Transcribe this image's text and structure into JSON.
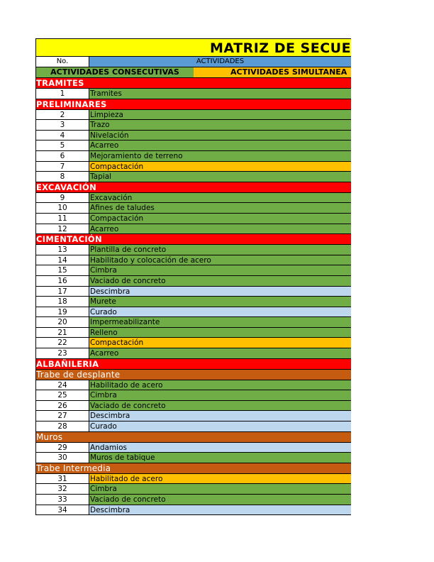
{
  "title": "MATRIZ DE SECUE",
  "header": {
    "no_label": "No.",
    "activities_label": "ACTIVIDADES"
  },
  "legend": {
    "consecutive_label": "ACTIVIDADES CONSECUTIVAS",
    "simultaneous_label": "ACTIVIDADES SIMULTANEA"
  },
  "colors": {
    "title": "#ffff00",
    "section": "#ff0000",
    "subsection": "#c55a11",
    "consecutive": "#70ad47",
    "simultaneous": "#ffc000",
    "other": "#bdd7ee",
    "header": "#5b9bd5"
  },
  "rows": [
    {
      "kind": "section",
      "label": "TRAMITES"
    },
    {
      "kind": "activity",
      "no": "1",
      "name": "Tramites",
      "color": "green"
    },
    {
      "kind": "section",
      "label": "PRELIMINARES"
    },
    {
      "kind": "activity",
      "no": "2",
      "name": "Limpieza",
      "color": "green"
    },
    {
      "kind": "activity",
      "no": "3",
      "name": "Trazo",
      "color": "green"
    },
    {
      "kind": "activity",
      "no": "4",
      "name": "Nivelación",
      "color": "green"
    },
    {
      "kind": "activity",
      "no": "5",
      "name": "Acarreo",
      "color": "green"
    },
    {
      "kind": "activity",
      "no": "6",
      "name": "Mejoramiento de terreno",
      "color": "green"
    },
    {
      "kind": "activity",
      "no": "7",
      "name": "Compactación",
      "color": "orange"
    },
    {
      "kind": "activity",
      "no": "8",
      "name": "Tapial",
      "color": "green"
    },
    {
      "kind": "section",
      "label": "EXCAVACIÓN"
    },
    {
      "kind": "activity",
      "no": "9",
      "name": "Excavación",
      "color": "green"
    },
    {
      "kind": "activity",
      "no": "10",
      "name": "Afines de taludes",
      "color": "green"
    },
    {
      "kind": "activity",
      "no": "11",
      "name": "Compactación",
      "color": "green"
    },
    {
      "kind": "activity",
      "no": "12",
      "name": "Acarreo",
      "color": "green"
    },
    {
      "kind": "section",
      "label": "CIMENTACIÓN"
    },
    {
      "kind": "activity",
      "no": "13",
      "name": "Plantilla de concreto",
      "color": "green"
    },
    {
      "kind": "activity",
      "no": "14",
      "name": "Habilitado y colocación de acero",
      "color": "green"
    },
    {
      "kind": "activity",
      "no": "15",
      "name": "Cimbra",
      "color": "green"
    },
    {
      "kind": "activity",
      "no": "16",
      "name": "Vaciado de concreto",
      "color": "green"
    },
    {
      "kind": "activity",
      "no": "17",
      "name": "Descimbra",
      "color": "blue"
    },
    {
      "kind": "activity",
      "no": "18",
      "name": "Murete",
      "color": "green"
    },
    {
      "kind": "activity",
      "no": "19",
      "name": "Curado",
      "color": "blue"
    },
    {
      "kind": "activity",
      "no": "20",
      "name": "Impermeabilizante",
      "color": "green"
    },
    {
      "kind": "activity",
      "no": "21",
      "name": "Relleno",
      "color": "green"
    },
    {
      "kind": "activity",
      "no": "22",
      "name": "Compactación",
      "color": "orange"
    },
    {
      "kind": "activity",
      "no": "23",
      "name": "Acarreo",
      "color": "green"
    },
    {
      "kind": "section",
      "label": "ALBAÑILERIA"
    },
    {
      "kind": "subsection",
      "label": "Trabe de desplante"
    },
    {
      "kind": "activity",
      "no": "24",
      "name": "Habilitado de acero",
      "color": "green"
    },
    {
      "kind": "activity",
      "no": "25",
      "name": "Cimbra",
      "color": "green"
    },
    {
      "kind": "activity",
      "no": "26",
      "name": "Vaciado de concreto",
      "color": "green"
    },
    {
      "kind": "activity",
      "no": "27",
      "name": "Descimbra",
      "color": "blue"
    },
    {
      "kind": "activity",
      "no": "28",
      "name": "Curado",
      "color": "blue"
    },
    {
      "kind": "subsection",
      "label": "Muros"
    },
    {
      "kind": "activity",
      "no": "29",
      "name": "Andamios",
      "color": "blue"
    },
    {
      "kind": "activity",
      "no": "30",
      "name": "Muros de tabique",
      "color": "green"
    },
    {
      "kind": "subsection",
      "label": "Trabe Intermedia"
    },
    {
      "kind": "activity",
      "no": "31",
      "name": "Habilitado de acero",
      "color": "orange"
    },
    {
      "kind": "activity",
      "no": "32",
      "name": "Cimbra",
      "color": "green"
    },
    {
      "kind": "activity",
      "no": "33",
      "name": "Vaciado de concreto",
      "color": "green"
    },
    {
      "kind": "activity",
      "no": "34",
      "name": "Descimbra",
      "color": "blue"
    }
  ]
}
